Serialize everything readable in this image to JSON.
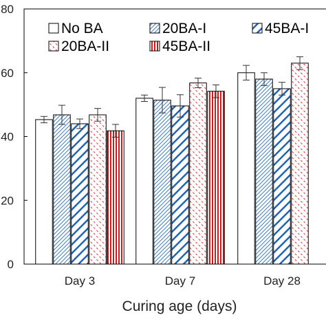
{
  "chart_data": {
    "type": "bar",
    "title": "",
    "xlabel": "Curing age (days)",
    "ylabel": "",
    "categories": [
      "Day 3",
      "Day 7",
      "Day 28"
    ],
    "ylim": [
      0,
      80
    ],
    "yticks": [
      "0",
      "20",
      "40",
      "60",
      "80"
    ],
    "grid": false,
    "legend_position": "top",
    "series": [
      {
        "name": "No BA",
        "values": [
          45.3,
          52.0,
          60.0
        ],
        "errors": [
          1.0,
          1.0,
          2.3
        ],
        "color": "#000000",
        "pattern": "solid-white"
      },
      {
        "name": "20BA-I",
        "values": [
          46.8,
          51.4,
          58.0
        ],
        "errors": [
          3.0,
          4.0,
          2.0
        ],
        "color": "#3a7dc0",
        "pattern": "fine-diagonal"
      },
      {
        "name": "45BA-I",
        "values": [
          44.0,
          49.6,
          55.0
        ],
        "errors": [
          1.5,
          3.5,
          2.0
        ],
        "color": "#1f64b4",
        "pattern": "wide-diagonal"
      },
      {
        "name": "20BA-II",
        "values": [
          46.8,
          56.8,
          63.0
        ],
        "errors": [
          2.0,
          1.5,
          2.0
        ],
        "color": "#e03030",
        "pattern": "dashed-diagonal"
      },
      {
        "name": "45BA-II",
        "values": [
          41.8,
          54.2,
          null
        ],
        "errors": [
          2.0,
          2.0,
          null
        ],
        "color": "#d01818",
        "pattern": "vertical-lines"
      }
    ]
  }
}
